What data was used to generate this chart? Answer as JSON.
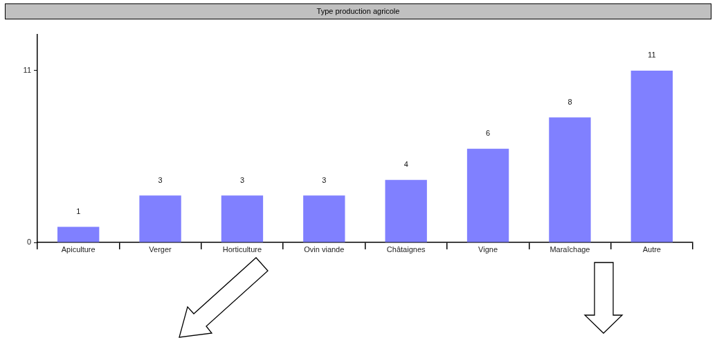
{
  "chart_data": {
    "type": "bar",
    "title": "Type production agricole",
    "categories": [
      "Apiculture",
      "Verger",
      "Horticulture",
      "Ovin viande",
      "Châtaignes",
      "Vigne",
      "Maraîchage",
      "Autre"
    ],
    "values": [
      1,
      3,
      3,
      3,
      4,
      6,
      8,
      11
    ],
    "color": "#8080ff",
    "ylim": [
      0,
      13.3
    ],
    "yticks": [
      0,
      11
    ],
    "data_labels": true
  }
}
